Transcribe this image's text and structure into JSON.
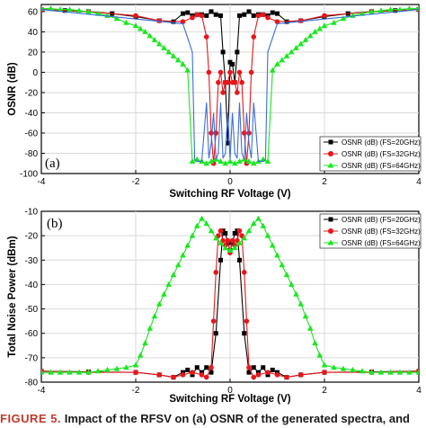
{
  "caption": {
    "prefix": "FIGURE 5.",
    "text": "Impact of the RFSV on (a) OSNR of the generated spectra, and"
  },
  "legend_labels": [
    "OSNR (dB) (FS=20GHz)",
    "OSNR (dB) (FS=32GHz)",
    "OSNR (dB) (FS=64GHz)"
  ],
  "colors": {
    "fs20": "#000000",
    "fs32": "#e8161a",
    "fs64": "#19e81f",
    "blue_trace": "#3a6fd8"
  },
  "chart_data": [
    {
      "type": "line",
      "panel_label": "(a)",
      "xlabel": "Switching RF Voltage (V)",
      "ylabel": "OSNR (dB)",
      "xlim": [
        -4,
        4
      ],
      "ylim": [
        -100,
        67
      ],
      "xticks": [
        -4,
        -2,
        0,
        2,
        4
      ],
      "yticks": [
        -100,
        -80,
        -60,
        -40,
        -20,
        0,
        20,
        40,
        60
      ],
      "grid": true,
      "legend_position": "bottom-right",
      "series": [
        {
          "name": "OSNR (dB) (FS=20GHz)",
          "marker": "square",
          "color": "#000000",
          "x": [
            -4,
            -3.5,
            -3,
            -2.5,
            -2,
            -1.5,
            -1.2,
            -1.0,
            -0.9,
            -0.8,
            -0.7,
            -0.6,
            -0.5,
            -0.4,
            -0.3,
            -0.2,
            -0.15,
            -0.1,
            -0.05,
            0,
            0.05,
            0.1,
            0.15,
            0.2,
            0.3,
            0.4,
            0.5,
            0.6,
            0.7,
            0.8,
            0.9,
            1.0,
            1.2,
            1.5,
            2,
            2.5,
            3,
            3.5,
            4
          ],
          "y": [
            62,
            61,
            60,
            58,
            55,
            51,
            50,
            58,
            59,
            56,
            57,
            57,
            56,
            60,
            57,
            56,
            20,
            -10,
            -70,
            10,
            8,
            -10,
            20,
            56,
            57,
            60,
            56,
            57,
            57,
            56,
            59,
            58,
            50,
            51,
            55,
            58,
            60,
            61,
            62
          ]
        },
        {
          "name": "OSNR (dB) (FS=32GHz)",
          "marker": "circle",
          "color": "#e8161a",
          "x": [
            -4,
            -3,
            -2,
            -1.5,
            -1,
            -0.8,
            -0.7,
            -0.6,
            -0.5,
            -0.45,
            -0.4,
            -0.35,
            -0.3,
            -0.25,
            -0.2,
            -0.15,
            -0.1,
            -0.05,
            0,
            0.05,
            0.1,
            0.15,
            0.2,
            0.25,
            0.3,
            0.35,
            0.4,
            0.45,
            0.5,
            0.6,
            0.7,
            0.8,
            1,
            1.5,
            2,
            3,
            4
          ],
          "y": [
            62,
            60,
            56,
            51,
            50,
            54,
            57,
            56,
            35,
            0,
            -60,
            -90,
            -60,
            -10,
            0,
            -20,
            -10,
            -10,
            0,
            -10,
            -10,
            -20,
            0,
            -10,
            -60,
            -90,
            -60,
            0,
            35,
            56,
            57,
            54,
            50,
            51,
            56,
            60,
            62
          ]
        },
        {
          "name": "OSNR (dB) (FS=64GHz)",
          "marker": "triangle",
          "color": "#19e81f",
          "x": [
            -4,
            -3.8,
            -3.6,
            -3.4,
            -3.2,
            -3,
            -2.8,
            -2.6,
            -2.4,
            -2.2,
            -2,
            -1.9,
            -1.8,
            -1.7,
            -1.6,
            -1.5,
            -1.4,
            -1.3,
            -1.2,
            -1.1,
            -1.0,
            -0.9,
            -0.8,
            -0.7,
            -0.6,
            -0.5,
            -0.4,
            -0.3,
            -0.2,
            -0.1,
            0,
            0.1,
            0.2,
            0.3,
            0.4,
            0.5,
            0.6,
            0.7,
            0.8,
            0.9,
            1.0,
            1.1,
            1.2,
            1.3,
            1.4,
            1.5,
            1.6,
            1.7,
            1.8,
            1.9,
            2,
            2.2,
            2.4,
            2.6,
            2.8,
            3,
            3.2,
            3.4,
            3.6,
            3.8,
            4
          ],
          "y": [
            63,
            63,
            62,
            62,
            61,
            60,
            58,
            56,
            53,
            49,
            46,
            43,
            40,
            36,
            32,
            28,
            24,
            20,
            16,
            12,
            8,
            2,
            -88,
            -86,
            -88,
            -90,
            -88,
            -86,
            -88,
            -90,
            -88,
            -90,
            -88,
            -86,
            -88,
            -90,
            -88,
            -86,
            -88,
            2,
            8,
            12,
            16,
            20,
            24,
            28,
            32,
            36,
            40,
            43,
            46,
            49,
            53,
            56,
            58,
            60,
            61,
            62,
            62,
            63,
            63
          ]
        },
        {
          "x": [
            -4,
            -1,
            -0.8,
            -0.75,
            -0.7,
            -0.6,
            -0.5,
            -0.45,
            -0.4,
            -0.35,
            -0.3,
            -0.25,
            -0.2,
            -0.15,
            -0.1,
            -0.05,
            0,
            0.05,
            0.1,
            0.15,
            0.2,
            0.25,
            0.3,
            0.35,
            0.4,
            0.45,
            0.5,
            0.6,
            0.7,
            0.75,
            0.8,
            1,
            4
          ],
          "y": [
            62,
            48,
            20,
            -86,
            -88,
            -88,
            -30,
            -85,
            -70,
            -40,
            -86,
            -80,
            -30,
            -85,
            -80,
            -40,
            -86,
            -40,
            -80,
            -85,
            -30,
            -80,
            -86,
            -40,
            -70,
            -85,
            -30,
            -88,
            -88,
            -86,
            20,
            48,
            62
          ]
        }
      ]
    },
    {
      "type": "line",
      "panel_label": "(b)",
      "xlabel": "Switching RF Voltage (V)",
      "ylabel": "Total Noise Power (dBm)",
      "xlim": [
        -4,
        4
      ],
      "ylim": [
        -80,
        -10
      ],
      "xticks": [
        -4,
        -2,
        0,
        2,
        4
      ],
      "yticks": [
        -80,
        -70,
        -60,
        -50,
        -40,
        -30,
        -20,
        -10
      ],
      "grid": true,
      "legend_position": "top-right",
      "series": [
        {
          "name": "OSNR (dB) (FS=20GHz)",
          "marker": "square",
          "color": "#000000",
          "x": [
            -4,
            -3,
            -2,
            -1.5,
            -1.2,
            -1.0,
            -0.9,
            -0.8,
            -0.7,
            -0.6,
            -0.5,
            -0.4,
            -0.3,
            -0.2,
            -0.15,
            -0.1,
            -0.05,
            0,
            0.05,
            0.1,
            0.15,
            0.2,
            0.3,
            0.4,
            0.5,
            0.6,
            0.7,
            0.8,
            0.9,
            1.0,
            1.2,
            1.5,
            2,
            3,
            4
          ],
          "y": [
            -75.5,
            -75.8,
            -76,
            -77,
            -78,
            -76,
            -75,
            -77,
            -74,
            -76,
            -74,
            -76,
            -60,
            -30,
            -18,
            -19,
            -23,
            -26,
            -23,
            -19,
            -18,
            -30,
            -60,
            -76,
            -74,
            -76,
            -74,
            -77,
            -75,
            -76,
            -78,
            -77,
            -76,
            -75.8,
            -75.5
          ]
        },
        {
          "name": "OSNR (dB) (FS=32GHz)",
          "marker": "circle",
          "color": "#e8161a",
          "x": [
            -4,
            -3,
            -2,
            -1.5,
            -1.2,
            -1.0,
            -0.8,
            -0.6,
            -0.5,
            -0.4,
            -0.35,
            -0.3,
            -0.25,
            -0.2,
            -0.15,
            -0.1,
            -0.05,
            0,
            0.05,
            0.1,
            0.15,
            0.2,
            0.25,
            0.3,
            0.35,
            0.4,
            0.5,
            0.6,
            0.8,
            1.0,
            1.2,
            1.5,
            2,
            3,
            4
          ],
          "y": [
            -75.5,
            -76,
            -76,
            -77,
            -78,
            -77,
            -76,
            -77,
            -78,
            -74,
            -55,
            -35,
            -20,
            -18,
            -22,
            -24,
            -22,
            -27,
            -22,
            -24,
            -22,
            -18,
            -20,
            -35,
            -55,
            -74,
            -78,
            -77,
            -76,
            -77,
            -78,
            -77,
            -76,
            -76,
            -75.5
          ]
        },
        {
          "name": "OSNR (dB) (FS=64GHz)",
          "marker": "triangle",
          "color": "#19e81f",
          "x": [
            -4,
            -3.8,
            -3.6,
            -3.4,
            -3.2,
            -3,
            -2.8,
            -2.6,
            -2.4,
            -2.2,
            -2,
            -1.9,
            -1.8,
            -1.7,
            -1.6,
            -1.5,
            -1.4,
            -1.3,
            -1.2,
            -1.1,
            -1.0,
            -0.9,
            -0.8,
            -0.7,
            -0.6,
            -0.5,
            -0.4,
            -0.3,
            -0.2,
            -0.1,
            0,
            0.1,
            0.2,
            0.3,
            0.4,
            0.5,
            0.6,
            0.7,
            0.8,
            0.9,
            1.0,
            1.1,
            1.2,
            1.3,
            1.4,
            1.5,
            1.6,
            1.7,
            1.8,
            1.9,
            2,
            2.2,
            2.4,
            2.6,
            2.8,
            3,
            3.2,
            3.4,
            3.6,
            3.8,
            4
          ],
          "y": [
            -76,
            -76,
            -76,
            -76,
            -76,
            -76,
            -75.5,
            -75,
            -74.5,
            -74,
            -73,
            -69,
            -64,
            -58,
            -53,
            -48,
            -44,
            -40,
            -36,
            -32,
            -28,
            -24,
            -20,
            -16,
            -13,
            -15,
            -18,
            -21,
            -23,
            -25,
            -26,
            -25,
            -23,
            -21,
            -18,
            -15,
            -13,
            -16,
            -20,
            -24,
            -28,
            -32,
            -36,
            -40,
            -44,
            -48,
            -53,
            -58,
            -64,
            -69,
            -73,
            -74,
            -74.5,
            -75,
            -75.5,
            -76,
            -76,
            -76,
            -76,
            -76,
            -76
          ]
        }
      ]
    }
  ]
}
